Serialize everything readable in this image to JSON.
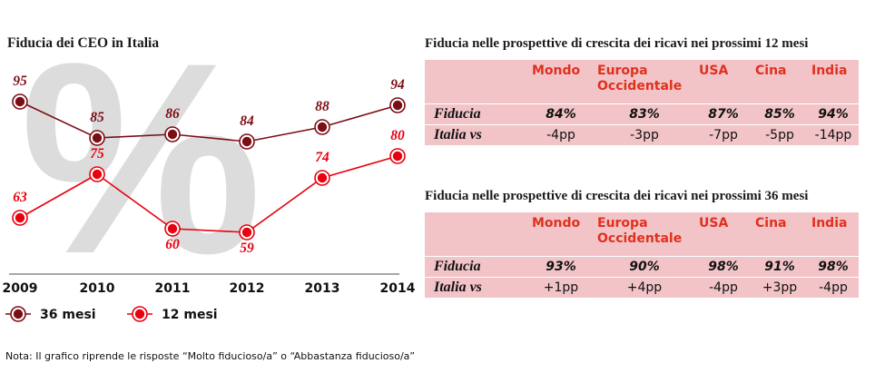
{
  "colors": {
    "series_36": "#7b0d14",
    "series_12": "#e8000e",
    "table_bg": "#f2c4c8",
    "header_text": "#e0301e",
    "watermark": "#dcdcdc"
  },
  "watermark_text": "%",
  "chart_data": {
    "type": "line",
    "title": "Fiducia dei CEO in Italia",
    "categories": [
      "2009",
      "2010",
      "2011",
      "2012",
      "2013",
      "2014"
    ],
    "ylim": [
      50,
      100
    ],
    "grid": false,
    "legend_position": "bottom-left",
    "series": [
      {
        "name": "36 mesi",
        "values": [
          95,
          85,
          86,
          84,
          88,
          94
        ],
        "color": "#7b0d14"
      },
      {
        "name": "12 mesi",
        "values": [
          63,
          75,
          60,
          59,
          74,
          80
        ],
        "color": "#e8000e"
      }
    ]
  },
  "table12": {
    "title": "Fiducia nelle prospettive di crescita dei ricavi nei prossimi 12 mesi",
    "headers": [
      "Mondo",
      "Europa Occidentale",
      "USA",
      "Cina",
      "India"
    ],
    "row1_label": "Fiducia",
    "row1": [
      "84%",
      "83%",
      "87%",
      "85%",
      "94%"
    ],
    "row2_label": "Italia vs",
    "row2": [
      "-4pp",
      "-3pp",
      "-7pp",
      "-5pp",
      "-14pp"
    ]
  },
  "table36": {
    "title": "Fiducia nelle prospettive di crescita dei ricavi nei prossimi 36 mesi",
    "headers": [
      "Mondo",
      "Europa Occidentale",
      "USA",
      "Cina",
      "India"
    ],
    "row1_label": "Fiducia",
    "row1": [
      "93%",
      "90%",
      "98%",
      "91%",
      "98%"
    ],
    "row2_label": "Italia vs",
    "row2": [
      "+1pp",
      "+4pp",
      "-4pp",
      "+3pp",
      "-4pp"
    ]
  },
  "footnote": "Nota: Il grafico riprende le risposte “Molto fiducioso/a” o “Abbastanza fiducioso/a”"
}
